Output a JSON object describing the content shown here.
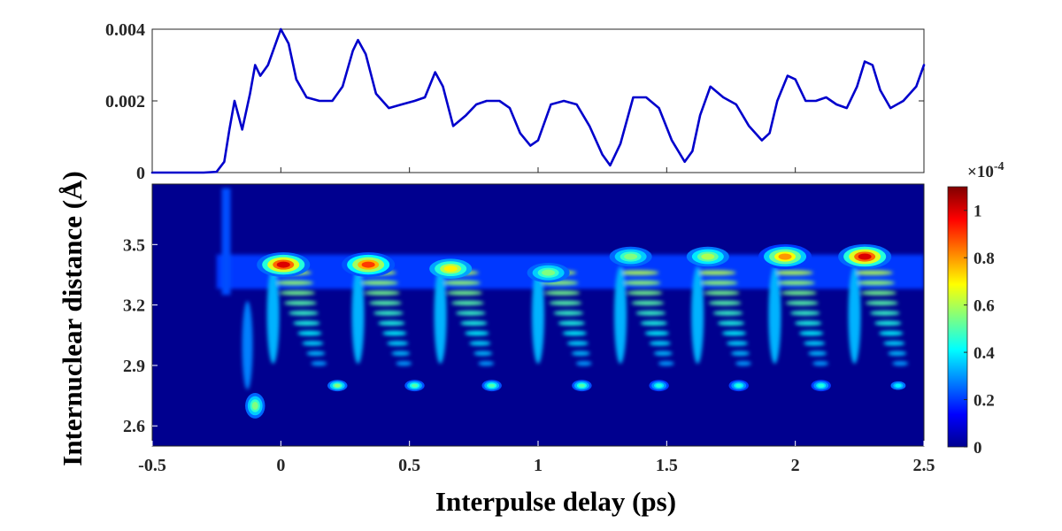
{
  "chart_data": [
    {
      "type": "line",
      "panel": "top",
      "ylim": [
        0,
        0.004
      ],
      "xlim": [
        -0.5,
        2.5
      ],
      "y_ticks": [
        "0.004",
        "0.002",
        "0"
      ],
      "line_color": "#0000CC",
      "series": [
        {
          "x": [
            -0.5,
            -0.3,
            -0.25,
            -0.22,
            -0.2,
            -0.18,
            -0.15,
            -0.12,
            -0.1,
            -0.08,
            -0.05,
            -0.02,
            0.0,
            0.03,
            0.06,
            0.1,
            0.15,
            0.2,
            0.24,
            0.28,
            0.3,
            0.33,
            0.37,
            0.42,
            0.47,
            0.52,
            0.56,
            0.6,
            0.63,
            0.67,
            0.72,
            0.76,
            0.8,
            0.85,
            0.89,
            0.93,
            0.97,
            1.0,
            1.05,
            1.1,
            1.15,
            1.2,
            1.25,
            1.28,
            1.32,
            1.37,
            1.42,
            1.47,
            1.52,
            1.57,
            1.6,
            1.63,
            1.67,
            1.72,
            1.77,
            1.82,
            1.87,
            1.9,
            1.93,
            1.97,
            2.0,
            2.04,
            2.08,
            2.12,
            2.16,
            2.2,
            2.24,
            2.27,
            2.3,
            2.33,
            2.37,
            2.42,
            2.47,
            2.5
          ],
          "y": [
            0.0,
            0.0,
            2e-05,
            0.0003,
            0.0012,
            0.002,
            0.0012,
            0.0022,
            0.003,
            0.0027,
            0.003,
            0.0036,
            0.004,
            0.0036,
            0.0026,
            0.0021,
            0.002,
            0.002,
            0.0024,
            0.0034,
            0.0037,
            0.0033,
            0.0022,
            0.0018,
            0.0019,
            0.002,
            0.0021,
            0.0028,
            0.0024,
            0.0013,
            0.0016,
            0.0019,
            0.002,
            0.002,
            0.0018,
            0.0011,
            0.00075,
            0.0009,
            0.0019,
            0.002,
            0.0019,
            0.0013,
            0.0005,
            0.0002,
            0.0008,
            0.0021,
            0.0021,
            0.0018,
            0.0009,
            0.0003,
            0.0006,
            0.0016,
            0.0024,
            0.0021,
            0.0019,
            0.0013,
            0.0009,
            0.0011,
            0.002,
            0.0027,
            0.0026,
            0.002,
            0.002,
            0.0021,
            0.0019,
            0.0018,
            0.0024,
            0.0031,
            0.003,
            0.0023,
            0.0018,
            0.002,
            0.0024,
            0.003
          ]
        }
      ]
    },
    {
      "type": "heatmap",
      "panel": "bottom",
      "xlabel": "Interpulse delay (ps)",
      "ylabel": "Internuclear distance (Å)",
      "xlim": [
        -0.5,
        2.5
      ],
      "ylim": [
        2.5,
        3.8
      ],
      "x_ticks": [
        "-0.5",
        "0",
        "0.5",
        "1",
        "1.5",
        "2",
        "2.5"
      ],
      "y_ticks": [
        "3.5",
        "3.2",
        "2.9",
        "2.6"
      ],
      "background_color": "#00008F",
      "colormap": "jet",
      "colorbar": {
        "range": [
          0,
          1.1
        ],
        "exponent_label": "×10",
        "exponent": "-4",
        "ticks": [
          "1",
          "0.8",
          "0.6",
          "0.4",
          "0.2",
          "0"
        ]
      },
      "peaks": [
        {
          "x": 0.01,
          "y": 3.4,
          "value": 1.0
        },
        {
          "x": 0.34,
          "y": 3.4,
          "value": 0.9
        },
        {
          "x": 0.66,
          "y": 3.38,
          "value": 0.7
        },
        {
          "x": 1.04,
          "y": 3.36,
          "value": 0.55
        },
        {
          "x": 1.36,
          "y": 3.44,
          "value": 0.55
        },
        {
          "x": 1.66,
          "y": 3.44,
          "value": 0.6
        },
        {
          "x": 1.96,
          "y": 3.44,
          "value": 0.8
        },
        {
          "x": 2.27,
          "y": 3.44,
          "value": 1.0
        },
        {
          "x": -0.1,
          "y": 2.7,
          "value": 0.55
        },
        {
          "x": 0.22,
          "y": 2.8,
          "value": 0.55
        },
        {
          "x": 0.52,
          "y": 2.8,
          "value": 0.5
        },
        {
          "x": 0.82,
          "y": 2.8,
          "value": 0.5
        },
        {
          "x": 1.17,
          "y": 2.8,
          "value": 0.5
        },
        {
          "x": 1.47,
          "y": 2.8,
          "value": 0.45
        },
        {
          "x": 1.78,
          "y": 2.8,
          "value": 0.45
        },
        {
          "x": 2.1,
          "y": 2.8,
          "value": 0.45
        },
        {
          "x": 2.4,
          "y": 2.8,
          "value": 0.4
        }
      ]
    }
  ]
}
